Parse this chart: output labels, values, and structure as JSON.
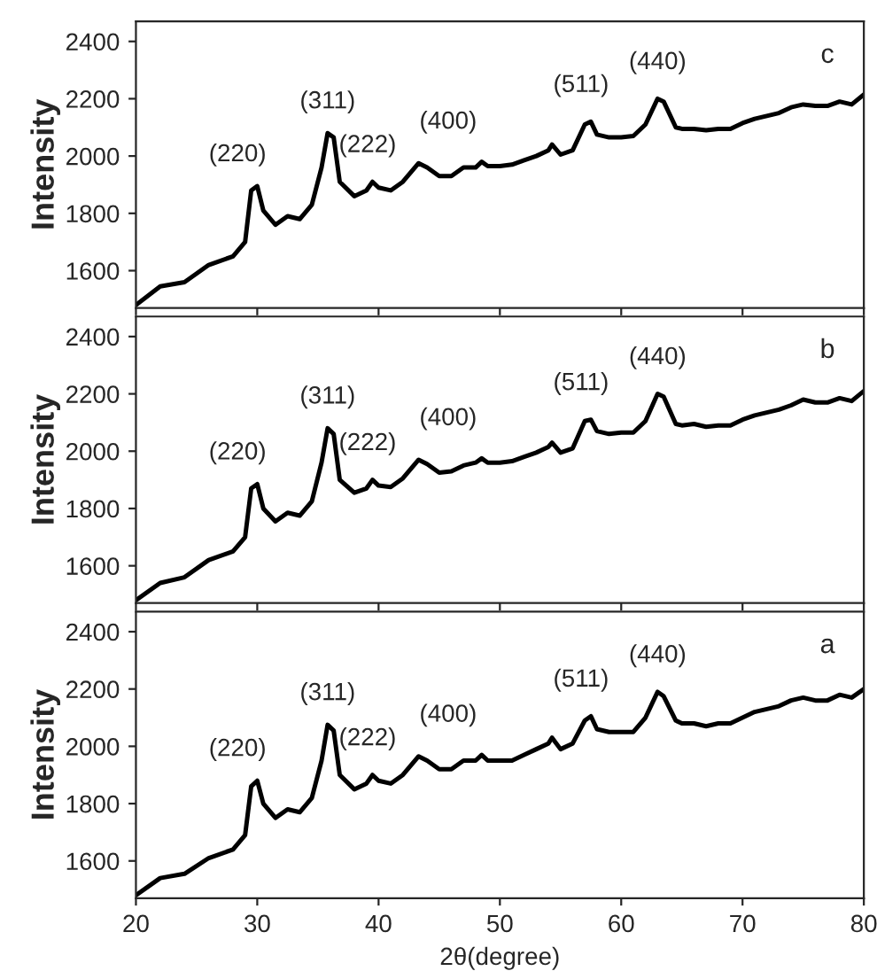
{
  "chart_data": [
    {
      "type": "line",
      "ylabel": "Intensity",
      "xlim": [
        20,
        80
      ],
      "ylim": [
        1470,
        2470
      ],
      "xticks": [
        20,
        30,
        40,
        50,
        60,
        70,
        80
      ],
      "yticks": [
        1600,
        1800,
        2000,
        2200,
        2400
      ],
      "tick_labels": "y",
      "grid": false,
      "legend": false,
      "series": [
        {
          "color": "#000000",
          "x": [
            20,
            22,
            24,
            26,
            28,
            29,
            29.5,
            30,
            30.5,
            31.5,
            32.5,
            33.5,
            34.5,
            35.3,
            35.8,
            36.3,
            36.8,
            38,
            39,
            39.5,
            40,
            41,
            42,
            43.3,
            44,
            45,
            46,
            47,
            48,
            48.5,
            49,
            50,
            51,
            52,
            53,
            54,
            54.3,
            55,
            56,
            57,
            57.5,
            58,
            59,
            60,
            61,
            62,
            63,
            63.5,
            64.5,
            65,
            66,
            67,
            68,
            69,
            70,
            71,
            72,
            73,
            74,
            75,
            76,
            77,
            78,
            79,
            80
          ],
          "values": [
            1480,
            1545,
            1560,
            1620,
            1650,
            1700,
            1880,
            1895,
            1810,
            1760,
            1790,
            1780,
            1830,
            1960,
            2080,
            2065,
            1910,
            1860,
            1880,
            1910,
            1890,
            1880,
            1910,
            1975,
            1960,
            1930,
            1930,
            1960,
            1960,
            1980,
            1965,
            1965,
            1970,
            1985,
            2000,
            2020,
            2040,
            2005,
            2020,
            2110,
            2120,
            2075,
            2065,
            2065,
            2070,
            2110,
            2200,
            2190,
            2100,
            2095,
            2095,
            2090,
            2095,
            2095,
            2115,
            2130,
            2140,
            2150,
            2170,
            2180,
            2175,
            2175,
            2190,
            2180,
            2215
          ]
        }
      ],
      "annotations": [
        {
          "text": "(220)",
          "x": 30,
          "y": 1895
        },
        {
          "text": "(311)",
          "x": 35.8,
          "y": 2080
        },
        {
          "text": "(222)",
          "x": 39.5,
          "y": 1910
        },
        {
          "text": "(400)",
          "x": 43.3,
          "y": 1975
        },
        {
          "text": "(511)",
          "x": 57.5,
          "y": 2120
        },
        {
          "text": "(440)",
          "x": 63,
          "y": 2200
        },
        "c"
      ]
    },
    {
      "type": "line",
      "ylabel": "Intensity",
      "xlim": [
        20,
        80
      ],
      "ylim": [
        1470,
        2470
      ],
      "xticks": [
        20,
        30,
        40,
        50,
        60,
        70,
        80
      ],
      "yticks": [
        1600,
        1800,
        2000,
        2200,
        2400
      ],
      "tick_labels": "y",
      "grid": false,
      "legend": false,
      "series": [
        {
          "color": "#000000",
          "x": [
            20,
            22,
            24,
            26,
            28,
            29,
            29.5,
            30,
            30.5,
            31.5,
            32.5,
            33.5,
            34.5,
            35.3,
            35.8,
            36.3,
            36.8,
            38,
            39,
            39.5,
            40,
            41,
            42,
            43.3,
            44,
            45,
            46,
            47,
            48,
            48.5,
            49,
            50,
            51,
            52,
            53,
            54,
            54.3,
            55,
            56,
            57,
            57.5,
            58,
            59,
            60,
            61,
            62,
            63,
            63.5,
            64.5,
            65,
            66,
            67,
            68,
            69,
            70,
            71,
            72,
            73,
            74,
            75,
            76,
            77,
            78,
            79,
            80
          ],
          "values": [
            1480,
            1540,
            1560,
            1620,
            1650,
            1700,
            1870,
            1885,
            1800,
            1755,
            1785,
            1775,
            1825,
            1960,
            2080,
            2060,
            1900,
            1855,
            1870,
            1900,
            1880,
            1875,
            1905,
            1970,
            1955,
            1925,
            1930,
            1950,
            1960,
            1975,
            1960,
            1960,
            1965,
            1980,
            1995,
            2015,
            2030,
            1995,
            2010,
            2105,
            2110,
            2070,
            2060,
            2065,
            2065,
            2105,
            2200,
            2190,
            2095,
            2090,
            2095,
            2085,
            2090,
            2090,
            2110,
            2125,
            2135,
            2145,
            2160,
            2180,
            2170,
            2170,
            2185,
            2175,
            2210
          ]
        }
      ],
      "annotations": [
        {
          "text": "(220)",
          "x": 30,
          "y": 1885
        },
        {
          "text": "(311)",
          "x": 35.8,
          "y": 2080
        },
        {
          "text": "(222)",
          "x": 39.5,
          "y": 1900
        },
        {
          "text": "(400)",
          "x": 43.3,
          "y": 1970
        },
        {
          "text": "(511)",
          "x": 57.5,
          "y": 2110
        },
        {
          "text": "(440)",
          "x": 63,
          "y": 2200
        },
        "b"
      ]
    },
    {
      "type": "line",
      "xlabel": "2θ(degree)",
      "ylabel": "Intensity",
      "xlim": [
        20,
        80
      ],
      "ylim": [
        1470,
        2470
      ],
      "xticks": [
        20,
        30,
        40,
        50,
        60,
        70,
        80
      ],
      "yticks": [
        1600,
        1800,
        2000,
        2200,
        2400
      ],
      "grid": false,
      "legend": false,
      "series": [
        {
          "color": "#000000",
          "x": [
            20,
            22,
            24,
            26,
            28,
            29,
            29.5,
            30,
            30.5,
            31.5,
            32.5,
            33.5,
            34.5,
            35.3,
            35.8,
            36.3,
            36.8,
            38,
            39,
            39.5,
            40,
            41,
            42,
            43.3,
            44,
            45,
            46,
            47,
            48,
            48.5,
            49,
            50,
            51,
            52,
            53,
            54,
            54.3,
            55,
            56,
            57,
            57.5,
            58,
            59,
            60,
            61,
            62,
            63,
            63.5,
            64.5,
            65,
            66,
            67,
            68,
            69,
            70,
            71,
            72,
            73,
            74,
            75,
            76,
            77,
            78,
            79,
            80
          ],
          "values": [
            1480,
            1540,
            1555,
            1610,
            1640,
            1690,
            1860,
            1880,
            1800,
            1750,
            1780,
            1770,
            1820,
            1950,
            2075,
            2055,
            1900,
            1850,
            1870,
            1900,
            1880,
            1870,
            1900,
            1965,
            1950,
            1920,
            1920,
            1950,
            1950,
            1970,
            1950,
            1950,
            1950,
            1970,
            1990,
            2010,
            2030,
            1990,
            2010,
            2090,
            2105,
            2060,
            2050,
            2050,
            2050,
            2100,
            2190,
            2175,
            2090,
            2080,
            2080,
            2070,
            2080,
            2080,
            2100,
            2120,
            2130,
            2140,
            2160,
            2170,
            2160,
            2160,
            2180,
            2170,
            2200
          ]
        }
      ],
      "annotations": [
        {
          "text": "(220)",
          "x": 30,
          "y": 1880
        },
        {
          "text": "(311)",
          "x": 35.8,
          "y": 2075
        },
        {
          "text": "(222)",
          "x": 39.5,
          "y": 1900
        },
        {
          "text": "(400)",
          "x": 43.3,
          "y": 1965
        },
        {
          "text": "(511)",
          "x": 57.5,
          "y": 2105
        },
        {
          "text": "(440)",
          "x": 63,
          "y": 2190
        },
        "a"
      ]
    }
  ]
}
